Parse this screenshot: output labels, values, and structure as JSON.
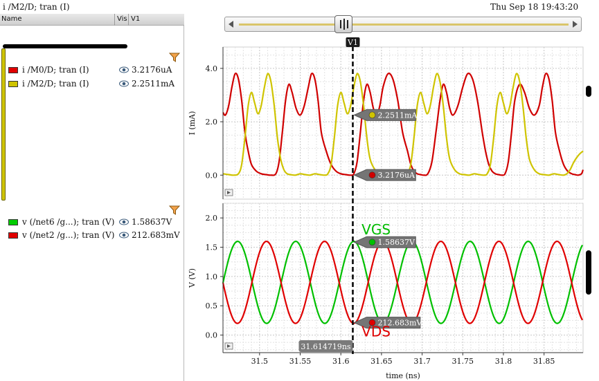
{
  "header": {
    "title": "i /M2/D; tran (I)",
    "datetime": "Thu Sep 18 19:43:20"
  },
  "list_header": {
    "name": "Name",
    "vis": "Vis",
    "v1": "V1"
  },
  "panel_top": {
    "filter_icon": "funnel-icon",
    "signals": [
      {
        "name": "i /M0/D; tran (I)",
        "value": "3.2176uA",
        "color": "#e00000"
      },
      {
        "name": "i /M2/D; tran (I)",
        "value": "2.2511mA",
        "color": "#cfc400"
      }
    ]
  },
  "panel_bottom": {
    "filter_icon": "funnel-icon",
    "signals": [
      {
        "name": "v (/net6 /g...); tran (V)",
        "value": "1.58637V",
        "color": "#00cc00"
      },
      {
        "name": "v (/net2 /g...); tran (V)",
        "value": "212.683mV",
        "color": "#e00000"
      }
    ]
  },
  "cursor": {
    "label": "V1",
    "x": 31.614719,
    "x_readout": "31.614719ns"
  },
  "chart_data": [
    {
      "type": "line",
      "xlabel": "time (ns)",
      "ylabel": "I (mA)",
      "xlim": [
        31.455,
        31.898
      ],
      "ylim": [
        -0.9,
        4.8
      ],
      "yticks": [
        0.0,
        2.0,
        4.0
      ],
      "ytick_labels": [
        "0.0",
        "2.0",
        "4.0"
      ],
      "grid": true,
      "series": [
        {
          "name": "i /M0/D; tran (I)",
          "color": "#d00000",
          "x": [
            31.455,
            31.458,
            31.462,
            31.466,
            31.47,
            31.474,
            31.478,
            31.482,
            31.486,
            31.49,
            31.496,
            31.502,
            31.508,
            31.514,
            31.52,
            31.524,
            31.528,
            31.532,
            31.536,
            31.54,
            31.545,
            31.55,
            31.555,
            31.56,
            31.564,
            31.568,
            31.572,
            31.576,
            31.582,
            31.588,
            31.594,
            31.6,
            31.606,
            31.612,
            31.616,
            31.62,
            31.624,
            31.628,
            31.632,
            31.636,
            31.64,
            31.644,
            31.648,
            31.652,
            31.658,
            31.664,
            31.67,
            31.676,
            31.682,
            31.686,
            31.69,
            31.694,
            31.698,
            31.702,
            31.707,
            31.712,
            31.717,
            31.722,
            31.726,
            31.73,
            31.734,
            31.738,
            31.744,
            31.75,
            31.756,
            31.762,
            31.768,
            31.774,
            31.778,
            31.782,
            31.786,
            31.79,
            31.794,
            31.798,
            31.802,
            31.806,
            31.81,
            31.814,
            31.82,
            31.826,
            31.832,
            31.838,
            31.844,
            31.848,
            31.852,
            31.856,
            31.86,
            31.864,
            31.869,
            31.874,
            31.879,
            31.884,
            31.888,
            31.892,
            31.896,
            31.898
          ],
          "values": [
            2.35,
            2.25,
            2.6,
            3.3,
            3.8,
            3.6,
            2.8,
            1.6,
            0.9,
            0.4,
            0.15,
            0.05,
            0.02,
            0.0,
            0.05,
            0.5,
            1.6,
            2.8,
            3.4,
            3.1,
            2.5,
            2.25,
            2.6,
            3.3,
            3.8,
            3.6,
            2.8,
            1.6,
            0.9,
            0.4,
            0.15,
            0.05,
            0.02,
            0.0,
            0.05,
            0.5,
            1.6,
            2.8,
            3.4,
            3.1,
            2.5,
            2.25,
            2.6,
            3.3,
            3.8,
            3.6,
            2.8,
            1.6,
            0.9,
            0.4,
            0.15,
            0.05,
            0.02,
            0.0,
            0.05,
            0.5,
            1.6,
            2.8,
            3.4,
            3.1,
            2.5,
            2.25,
            2.6,
            3.3,
            3.8,
            3.6,
            2.8,
            1.6,
            0.9,
            0.4,
            0.15,
            0.05,
            0.02,
            0.0,
            0.05,
            0.5,
            1.6,
            2.8,
            3.4,
            3.1,
            2.5,
            2.25,
            2.6,
            3.3,
            3.8,
            3.6,
            2.8,
            1.6,
            0.9,
            0.4,
            0.15,
            0.05,
            0.02,
            0.0,
            0.05,
            0.2
          ]
        },
        {
          "name": "i /M2/D; tran (I)",
          "color": "#cfc400",
          "x": [
            31.455,
            31.462,
            31.468,
            31.474,
            31.478,
            31.482,
            31.486,
            31.49,
            31.494,
            31.498,
            31.502,
            31.506,
            31.51,
            31.514,
            31.518,
            31.522,
            31.526,
            31.53,
            31.534,
            31.538,
            31.544,
            31.55,
            31.556,
            31.562,
            31.568,
            31.574,
            31.58,
            31.584,
            31.588,
            31.592,
            31.596,
            31.6,
            31.604,
            31.608,
            31.612,
            31.616,
            31.62,
            31.624,
            31.628,
            31.632,
            31.636,
            31.642,
            31.648,
            31.654,
            31.66,
            31.666,
            31.672,
            31.678,
            31.682,
            31.686,
            31.69,
            31.694,
            31.698,
            31.702,
            31.706,
            31.71,
            31.714,
            31.718,
            31.722,
            31.726,
            31.73,
            31.734,
            31.74,
            31.746,
            31.752,
            31.758,
            31.764,
            31.77,
            31.776,
            31.78,
            31.784,
            31.788,
            31.792,
            31.796,
            31.8,
            31.804,
            31.808,
            31.812,
            31.816,
            31.82,
            31.824,
            31.828,
            31.832,
            31.838,
            31.844,
            31.85,
            31.856,
            31.862,
            31.868,
            31.874,
            31.878,
            31.882,
            31.886,
            31.89,
            31.894,
            31.898
          ],
          "values": [
            0.05,
            0.02,
            0.0,
            0.05,
            0.4,
            1.4,
            2.6,
            3.1,
            2.7,
            2.3,
            2.6,
            3.3,
            3.8,
            3.5,
            2.6,
            1.4,
            0.6,
            0.2,
            0.05,
            0.02,
            0.0,
            0.05,
            0.02,
            0.0,
            0.05,
            0.02,
            0.0,
            0.05,
            0.4,
            1.4,
            2.6,
            3.1,
            2.7,
            2.3,
            2.6,
            3.3,
            3.8,
            3.5,
            2.6,
            1.4,
            0.6,
            0.2,
            0.05,
            0.02,
            0.0,
            0.05,
            0.02,
            0.0,
            0.05,
            0.4,
            1.4,
            2.6,
            3.1,
            2.7,
            2.3,
            2.6,
            3.3,
            3.8,
            3.5,
            2.6,
            1.4,
            0.6,
            0.2,
            0.05,
            0.02,
            0.0,
            0.05,
            0.02,
            0.0,
            0.05,
            0.4,
            1.4,
            2.6,
            3.1,
            2.7,
            2.3,
            2.6,
            3.3,
            3.8,
            3.5,
            2.6,
            1.4,
            0.6,
            0.2,
            0.05,
            0.02,
            0.0,
            0.05,
            0.02,
            0.0,
            0.05,
            0.2,
            0.45,
            0.65,
            0.8,
            0.9
          ]
        }
      ],
      "markers": [
        {
          "y": 2.2511,
          "label": "2.2511mA",
          "color": "#cfc400"
        },
        {
          "y": 0.0032,
          "label": "3.2176uA",
          "color": "#d00000"
        }
      ]
    },
    {
      "type": "line",
      "xlabel": "time (ns)",
      "ylabel": "V (V)",
      "xlim": [
        31.455,
        31.898
      ],
      "ylim": [
        -0.3,
        2.25
      ],
      "xticks": [
        31.5,
        31.55,
        31.6,
        31.65,
        31.7,
        31.75,
        31.8,
        31.85
      ],
      "xtick_labels": [
        "31.5",
        "31.55",
        "31.6",
        "31.65",
        "31.7",
        "31.75",
        "31.8",
        "31.85"
      ],
      "yticks": [
        0.0,
        0.5,
        1.0,
        1.5,
        2.0
      ],
      "ytick_labels": [
        "0.0",
        "0.5",
        "1.0",
        "1.5",
        "2.0"
      ],
      "grid": true,
      "annotations": [
        {
          "text": "VGS",
          "x": 31.617,
          "y": 1.72,
          "color": "#00bb00"
        },
        {
          "text": "VDS",
          "x": 31.617,
          "y": -0.02,
          "color": "#e00000"
        }
      ],
      "series": [
        {
          "name": "v (/net6 /g...); tran (V)",
          "color": "#00c000",
          "function": "sine",
          "offset": 0.9,
          "amplitude": 0.7,
          "period_ns": 0.0715,
          "peak_at_ns": 31.616
        },
        {
          "name": "v (/net2 /g...); tran (V)",
          "color": "#e00000",
          "function": "sine",
          "offset": 0.9,
          "amplitude": 0.7,
          "period_ns": 0.0715,
          "peak_at_ns": 31.58
        }
      ],
      "markers": [
        {
          "y": 1.58637,
          "label": "1.58637V",
          "color": "#00c000"
        },
        {
          "y": 0.212683,
          "label": "212.683mV",
          "color": "#e00000"
        }
      ]
    }
  ]
}
